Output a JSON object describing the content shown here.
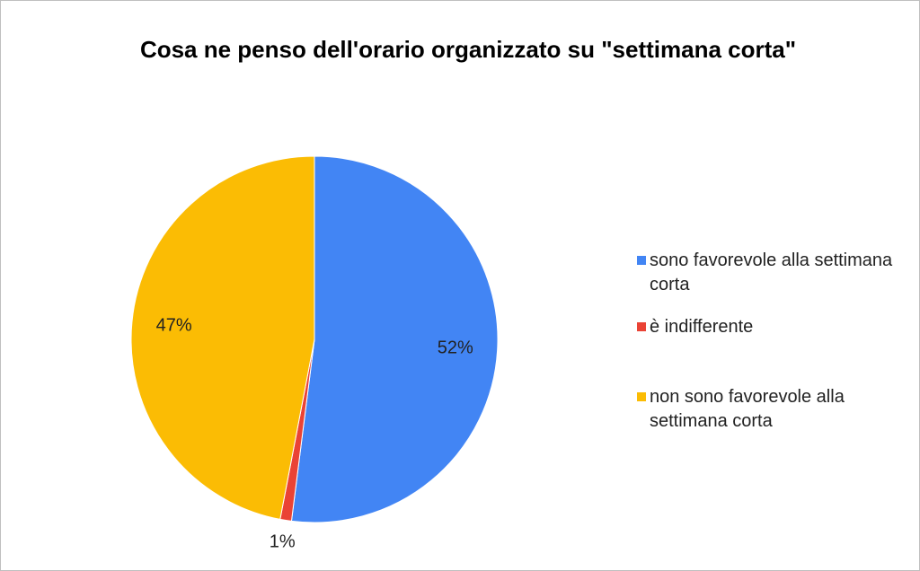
{
  "chart_data": {
    "type": "pie",
    "title": "Cosa ne penso dell'orario organizzato su \"settimana corta\"",
    "categories": [
      "sono favorevole alla settimana corta",
      "è indifferente",
      "non sono favorevole alla settimana corta"
    ],
    "values": [
      52,
      1,
      47
    ],
    "value_labels": [
      "52%",
      "1%",
      "47%"
    ],
    "colors": [
      "#4285f4",
      "#ea4335",
      "#fbbc04"
    ],
    "legend": "right"
  }
}
